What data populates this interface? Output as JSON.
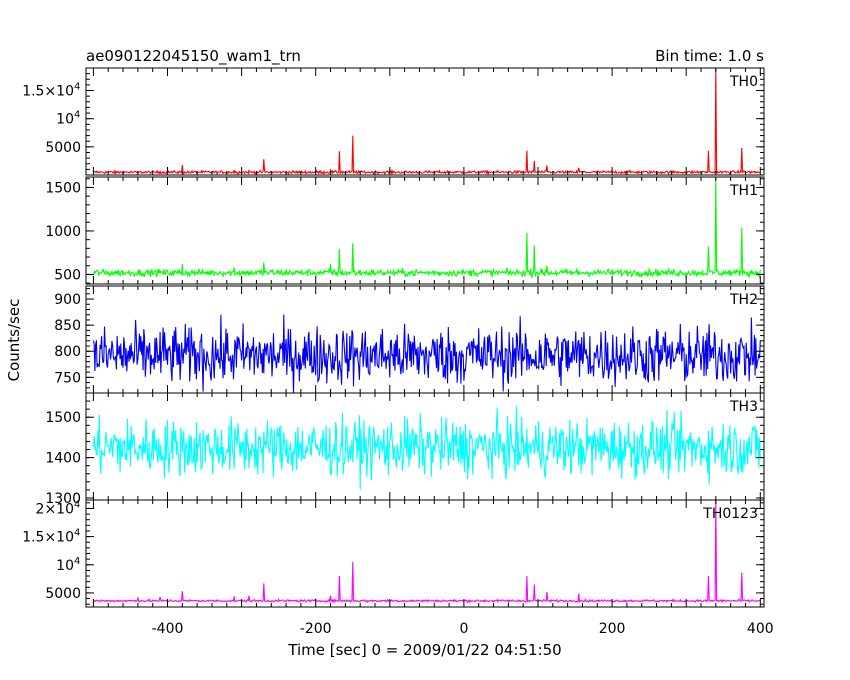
{
  "header": {
    "title": "ae090122045150_wam1_trn",
    "bin_time": "Bin time: 1.0 s"
  },
  "axes": {
    "xlabel": "Time [sec] 0 = 2009/01/22 04:51:50",
    "ylabel": "Counts/sec",
    "xlim": [
      -510,
      405
    ],
    "xticks": [
      "-400",
      "-200",
      "0",
      "200",
      "400"
    ]
  },
  "chart_data": {
    "type": "line",
    "x_range": [
      -500,
      400
    ],
    "bin_time_s": 1.0,
    "series": [
      {
        "name": "TH0",
        "color": "#ff0000",
        "ylim": [
          0,
          19000
        ],
        "ticks": [
          {
            "v": 5000,
            "t": "5000"
          },
          {
            "v": 10000,
            "t": "10",
            "sup": "4"
          },
          {
            "v": 15000,
            "t": "1.5×10",
            "sup": "4"
          }
        ],
        "baseline": 500,
        "noise": 120,
        "spikes": [
          [
            -470,
            300
          ],
          [
            -440,
            400
          ],
          [
            -410,
            600
          ],
          [
            -380,
            1800
          ],
          [
            -310,
            900
          ],
          [
            -290,
            800
          ],
          [
            -270,
            2800
          ],
          [
            -180,
            900
          ],
          [
            -168,
            4200
          ],
          [
            -150,
            7000
          ],
          [
            85,
            4300
          ],
          [
            95,
            2500
          ],
          [
            112,
            1700
          ],
          [
            155,
            1300
          ],
          [
            330,
            4300
          ],
          [
            340,
            19000
          ],
          [
            375,
            4800
          ]
        ]
      },
      {
        "name": "TH1",
        "color": "#00ff00",
        "ylim": [
          390,
          1620
        ],
        "ticks": [
          {
            "v": 500,
            "t": "500"
          },
          {
            "v": 1000,
            "t": "1000"
          },
          {
            "v": 1500,
            "t": "1500"
          }
        ],
        "baseline": 520,
        "noise": 20,
        "spikes": [
          [
            -380,
            620
          ],
          [
            -310,
            580
          ],
          [
            -270,
            640
          ],
          [
            -180,
            620
          ],
          [
            -168,
            790
          ],
          [
            -150,
            860
          ],
          [
            85,
            980
          ],
          [
            95,
            830
          ],
          [
            112,
            600
          ],
          [
            330,
            820
          ],
          [
            340,
            1620
          ],
          [
            375,
            1040
          ]
        ]
      },
      {
        "name": "TH2",
        "color": "#0000ee",
        "ylim": [
          720,
          925
        ],
        "ticks": [
          {
            "v": 750,
            "t": "750"
          },
          {
            "v": 800,
            "t": "800"
          },
          {
            "v": 850,
            "t": "850"
          },
          {
            "v": 900,
            "t": "900"
          }
        ],
        "baseline": 792,
        "noise": 28,
        "spikes": []
      },
      {
        "name": "TH3",
        "color": "#00ffff",
        "ylim": [
          1295,
          1560
        ],
        "ticks": [
          {
            "v": 1300,
            "t": "1300"
          },
          {
            "v": 1400,
            "t": "1400"
          },
          {
            "v": 1500,
            "t": "1500"
          }
        ],
        "baseline": 1425,
        "noise": 35,
        "spikes": []
      },
      {
        "name": "TH0123",
        "color": "#ff00ff",
        "ylim": [
          2500,
          21500
        ],
        "ticks": [
          {
            "v": 5000,
            "t": "5000"
          },
          {
            "v": 10000,
            "t": "10",
            "sup": "4"
          },
          {
            "v": 15000,
            "t": "1.5×10",
            "sup": "4"
          },
          {
            "v": 20000,
            "t": "2×10",
            "sup": "4"
          }
        ],
        "baseline": 3600,
        "noise": 100,
        "spikes": [
          [
            -440,
            4200
          ],
          [
            -410,
            4300
          ],
          [
            -380,
            5300
          ],
          [
            -310,
            4400
          ],
          [
            -290,
            4500
          ],
          [
            -270,
            6700
          ],
          [
            -180,
            4500
          ],
          [
            -168,
            8000
          ],
          [
            -150,
            10500
          ],
          [
            85,
            8000
          ],
          [
            95,
            6500
          ],
          [
            112,
            5200
          ],
          [
            155,
            4900
          ],
          [
            330,
            8000
          ],
          [
            340,
            21500
          ],
          [
            375,
            8600
          ]
        ]
      }
    ]
  }
}
